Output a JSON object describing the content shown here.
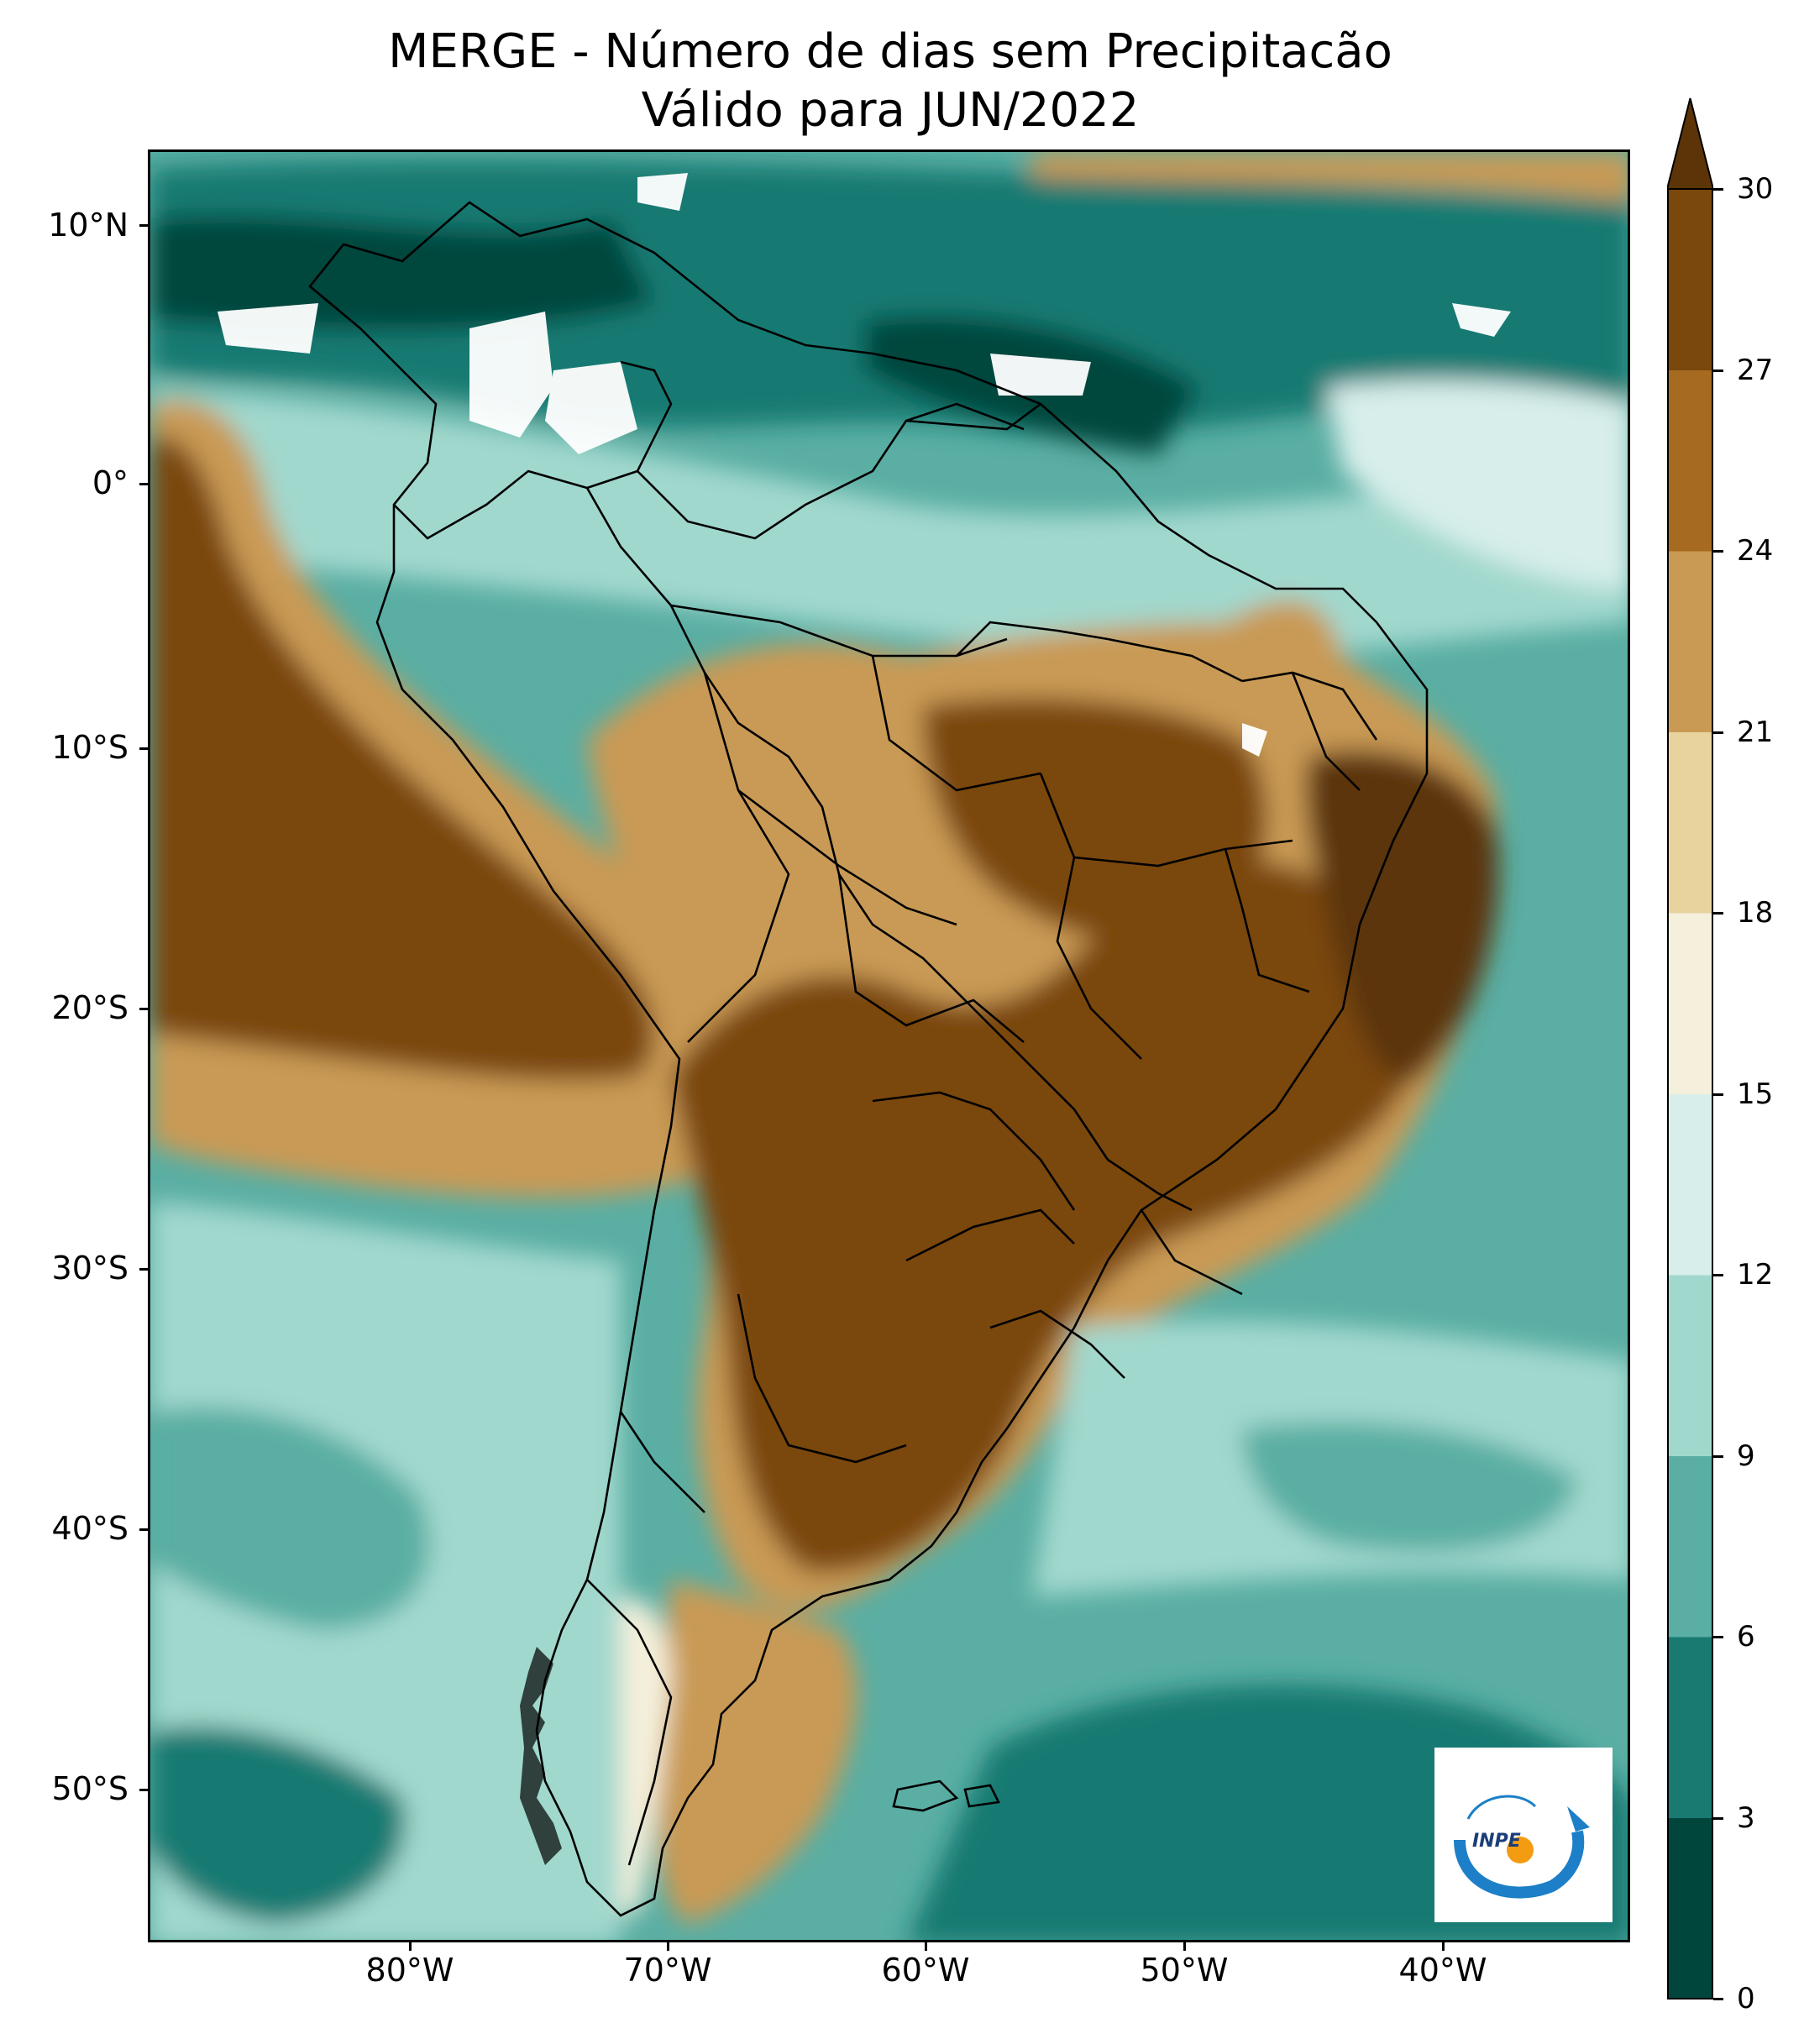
{
  "title": {
    "line1": "MERGE - Número de dias sem Precipitacão",
    "line2": "Válido para JUN/2022"
  },
  "map": {
    "region": "South America",
    "variable": "Number of days without precipitation",
    "lat_labels": [
      "10°N",
      "0°",
      "10°S",
      "20°S",
      "30°S",
      "40°S",
      "50°S"
    ],
    "lon_labels": [
      "80°W",
      "70°W",
      "60°W",
      "50°W",
      "40°W"
    ],
    "patterns": [
      {
        "area": "Central Brazil, Paraguay, northern Argentina",
        "days": "27–30"
      },
      {
        "area": "Eastern Pacific off Peru/Ecuador",
        "days": "24–30"
      },
      {
        "area": "Northern South America, Caribbean, Atlantic",
        "days": "0–12"
      },
      {
        "area": "Southern Atlantic and Pacific",
        "days": "3–15"
      }
    ]
  },
  "colorbar": {
    "ticks": [
      "0",
      "3",
      "6",
      "9",
      "12",
      "15",
      "18",
      "21",
      "24",
      "27",
      "30"
    ],
    "colors": [
      "#01463c",
      "#197a72",
      "#5aaea3",
      "#a1d8cd",
      "#d7eeeb",
      "#f5f0dc",
      "#e8d39f",
      "#c99a54",
      "#a66a20",
      "#7a470c"
    ],
    "extend_color": "#5c3408"
  },
  "logo": {
    "text": "INPE"
  }
}
